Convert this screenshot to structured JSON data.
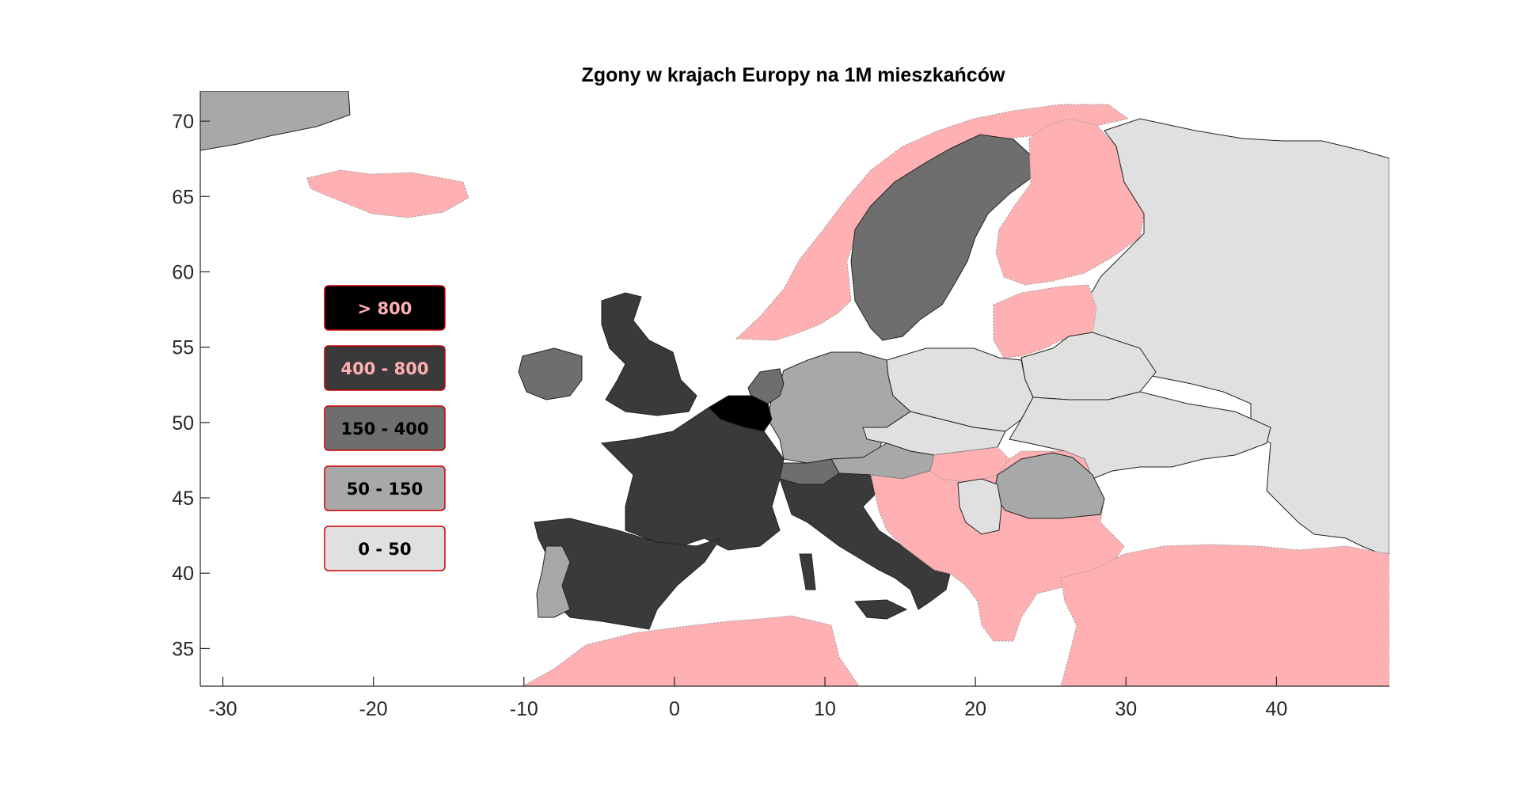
{
  "chart": {
    "title": "Zgony w krajach Europy na 1M mieszkańców",
    "x_ticks": [
      -30,
      -20,
      -10,
      0,
      10,
      20,
      30,
      40
    ],
    "y_ticks": [
      35,
      40,
      45,
      50,
      55,
      60,
      65,
      70
    ],
    "xlim": [
      -31.5,
      47.5
    ],
    "ylim": [
      32.5,
      72
    ]
  },
  "legend": [
    {
      "label": "> 800",
      "fill": "#000000",
      "text_color": "#ffb0b3"
    },
    {
      "label": "400 - 800",
      "fill": "#3a3a3a",
      "text_color": "#ffb0b3"
    },
    {
      "label": "150 - 400",
      "fill": "#6e6e6e",
      "text_color": "#000000"
    },
    {
      "label": "50 - 150",
      "fill": "#a8a8a8",
      "text_color": "#000000"
    },
    {
      "label": "0 - 50",
      "fill": "#e0e0e0",
      "text_color": "#000000"
    }
  ],
  "colors": {
    "no_data": "#ffb0b3",
    "legend_border": "#cc0000",
    "country_border": "#222222"
  },
  "chart_data": {
    "type": "choropleth",
    "title": "Zgony w krajach Europy na 1M mieszkańców",
    "xlim": [
      -31.5,
      47.5
    ],
    "ylim": [
      32.5,
      72
    ],
    "classes": [
      "> 800",
      "400 - 800",
      "150 - 400",
      "50 - 150",
      "0 - 50"
    ],
    "regions": [
      {
        "name": "Belgium",
        "class": "> 800"
      },
      {
        "name": "United Kingdom",
        "class": "400 - 800"
      },
      {
        "name": "France",
        "class": "400 - 800"
      },
      {
        "name": "Spain",
        "class": "400 - 800"
      },
      {
        "name": "Italy",
        "class": "400 - 800"
      },
      {
        "name": "Sweden",
        "class": "150 - 400"
      },
      {
        "name": "Ireland",
        "class": "150 - 400"
      },
      {
        "name": "Netherlands",
        "class": "150 - 400"
      },
      {
        "name": "Switzerland",
        "class": "150 - 400"
      },
      {
        "name": "Germany",
        "class": "50 - 150"
      },
      {
        "name": "Portugal",
        "class": "50 - 150"
      },
      {
        "name": "Austria",
        "class": "50 - 150"
      },
      {
        "name": "Romania",
        "class": "50 - 150"
      },
      {
        "name": "Greenland",
        "class": "50 - 150"
      },
      {
        "name": "Poland",
        "class": "0 - 50"
      },
      {
        "name": "Czechia",
        "class": "0 - 50"
      },
      {
        "name": "Slovakia",
        "class": "0 - 50"
      },
      {
        "name": "Serbia",
        "class": "0 - 50"
      },
      {
        "name": "Belarus",
        "class": "0 - 50"
      },
      {
        "name": "Ukraine",
        "class": "0 - 50"
      },
      {
        "name": "Russia",
        "class": "0 - 50"
      }
    ]
  }
}
